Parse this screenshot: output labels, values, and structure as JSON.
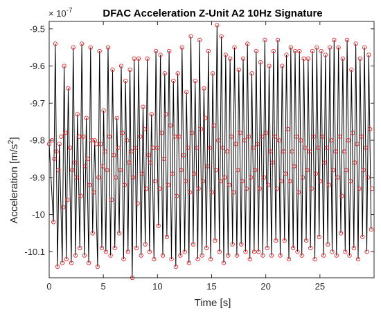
{
  "chart_data": {
    "type": "line",
    "title": "DFAC Acceleration Z-Unit A2 10Hz Signature",
    "xlabel": "Time [s]",
    "ylabel": "Acceleration [m/s",
    "ylabel_sup": "2",
    "ylabel_end": "]",
    "exponent_base": "× 10",
    "exponent_power": "-7",
    "xlim": [
      0,
      30
    ],
    "ylim": [
      -10.17,
      -9.48
    ],
    "x_ticks": [
      0,
      5,
      10,
      15,
      20,
      25
    ],
    "x_tick_labels": [
      "0",
      "5",
      "10",
      "15",
      "20",
      "25"
    ],
    "y_ticks": [
      -9.5,
      -9.6,
      -9.7,
      -9.8,
      -9.9,
      -10.0,
      -10.1
    ],
    "y_tick_labels": [
      "-9.5",
      "-9.6",
      "-9.7",
      "-9.8",
      "-9.9",
      "-10",
      "-10.1"
    ],
    "grid": false,
    "legend": false,
    "colors": {
      "line": "#000000",
      "marker": "#e8262c",
      "axes": "#262626"
    },
    "series": [
      {
        "style": "line with circle markers at peaks and troughs",
        "x": [
          0.0,
          0.39,
          0.56,
          0.77,
          0.94,
          1.21,
          1.38,
          1.58,
          1.76,
          2.04,
          2.22,
          2.44,
          2.61,
          2.83,
          3.01,
          3.25,
          3.43,
          3.65,
          3.82,
          4.01,
          4.2,
          4.47,
          4.65,
          4.86,
          5.03,
          5.23,
          5.44,
          5.67,
          5.85,
          6.06,
          6.25,
          6.47,
          6.65,
          6.87,
          7.05,
          7.28,
          7.46,
          7.67,
          7.85,
          8.06,
          8.26,
          8.49,
          8.67,
          8.87,
          9.06,
          9.27,
          9.45,
          9.68,
          9.86,
          10.09,
          10.27,
          10.49,
          10.67,
          10.87,
          11.07,
          11.29,
          11.47,
          11.69,
          11.87,
          12.11,
          12.27,
          12.51,
          12.68,
          12.91,
          13.08,
          13.3,
          13.48,
          13.72,
          13.88,
          14.11,
          14.29,
          14.52,
          14.7,
          14.92,
          15.1,
          15.31,
          15.5,
          15.72,
          15.9,
          16.12,
          16.3,
          16.52,
          16.7,
          16.93,
          17.11,
          17.33,
          17.51,
          17.73,
          17.91,
          18.13,
          18.31,
          18.53,
          18.71,
          18.93,
          19.11,
          19.33,
          19.51,
          19.73,
          19.91,
          20.13,
          20.31,
          20.53,
          20.71,
          20.93,
          21.11,
          21.33,
          21.51,
          21.73,
          21.91,
          22.13,
          22.31,
          22.53,
          22.71,
          22.93,
          23.11,
          23.33,
          23.51,
          23.73,
          23.91,
          24.13,
          24.31,
          24.53,
          24.71,
          24.93,
          25.11,
          25.33,
          25.51,
          25.73,
          25.91,
          26.13,
          26.31,
          26.53,
          26.71,
          26.93,
          27.11,
          27.33,
          27.51,
          27.73,
          27.91,
          28.13,
          28.31,
          28.53,
          28.71,
          28.93,
          29.11,
          29.33,
          29.51,
          29.73
        ],
        "y": [
          -9.81,
          -10.02,
          -9.54,
          -10.14,
          -9.81,
          -10.13,
          -9.6,
          -10.12,
          -9.66,
          -10.13,
          -9.55,
          -10.11,
          -9.73,
          -10.09,
          -9.54,
          -10.11,
          -9.74,
          -10.13,
          -9.55,
          -10.05,
          -9.8,
          -10.14,
          -9.56,
          -10.09,
          -9.72,
          -10.1,
          -9.55,
          -10.11,
          -9.61,
          -10.09,
          -9.74,
          -10.05,
          -9.6,
          -10.12,
          -9.64,
          -10.1,
          -9.61,
          -10.17,
          -9.58,
          -10.09,
          -9.58,
          -10.11,
          -9.71,
          -10.08,
          -9.58,
          -10.1,
          -9.73,
          -10.12,
          -9.56,
          -10.03,
          -9.57,
          -10.11,
          -9.62,
          -10.06,
          -9.56,
          -10.12,
          -9.64,
          -10.14,
          -9.62,
          -10.11,
          -9.55,
          -10.1,
          -9.67,
          -10.13,
          -9.52,
          -10.08,
          -9.64,
          -10.12,
          -9.53,
          -10.11,
          -9.66,
          -10.09,
          -9.56,
          -10.12,
          -9.62,
          -10.07,
          -9.49,
          -10.1,
          -9.52,
          -10.13,
          -9.57,
          -10.11,
          -9.58,
          -10.08,
          -9.55,
          -10.11,
          -9.61,
          -10.08,
          -9.58,
          -10.1,
          -9.54,
          -10.12,
          -9.62,
          -10.1,
          -9.56,
          -10.1,
          -9.59,
          -10.11,
          -9.53,
          -10.09,
          -9.6,
          -10.11,
          -9.56,
          -10.07,
          -9.53,
          -10.11,
          -9.6,
          -10.07,
          -9.57,
          -10.12,
          -9.55,
          -10.09,
          -9.56,
          -10.1,
          -9.56,
          -10.11,
          -9.58,
          -10.07,
          -9.58,
          -10.09,
          -9.56,
          -10.12,
          -9.55,
          -10.06,
          -9.56,
          -10.11,
          -9.57,
          -10.08,
          -9.55,
          -10.1,
          -9.53,
          -10.11,
          -9.55,
          -10.05,
          -9.58,
          -10.1,
          -9.53,
          -10.11,
          -9.61,
          -10.09,
          -9.54,
          -10.12,
          -9.58,
          -10.06,
          -9.55,
          -10.1,
          -9.57,
          -10.04
        ]
      },
      {
        "style": "circle markers only (secondary peak/trough pairs)",
        "x": [
          0.25,
          0.47,
          0.68,
          0.86,
          1.1,
          1.3,
          1.49,
          1.67,
          1.92,
          2.13,
          2.35,
          2.52,
          2.74,
          2.92,
          3.14,
          3.34,
          3.55,
          3.73,
          3.92,
          4.11,
          4.35,
          4.56,
          4.76,
          4.95,
          5.14,
          5.34,
          5.56,
          5.76,
          5.97,
          6.16,
          6.37,
          6.56,
          6.77,
          6.96,
          7.18,
          7.37,
          7.58,
          7.76,
          7.97,
          8.16,
          8.39,
          8.58,
          8.78,
          8.97,
          9.17,
          9.36,
          9.58,
          9.77,
          9.98,
          10.18,
          10.39,
          10.58,
          10.78,
          10.98,
          11.19,
          11.38,
          11.59,
          11.78,
          12.0,
          12.19,
          12.4,
          12.59,
          12.8,
          12.99,
          13.2,
          13.39,
          13.61,
          13.79,
          14.0,
          14.2,
          14.42,
          14.61,
          14.82,
          15.01,
          15.21,
          15.41,
          15.62,
          15.81,
          16.02,
          16.21,
          16.42,
          16.61,
          16.82,
          17.02,
          17.23,
          17.42,
          17.63,
          17.82,
          18.03,
          18.22,
          18.43,
          18.62,
          18.83,
          19.02,
          19.23,
          19.42,
          19.63,
          19.82,
          20.03,
          20.22,
          20.43,
          20.62,
          20.83,
          21.02,
          21.23,
          21.42,
          21.63,
          21.82,
          22.03,
          22.22,
          22.43,
          22.62,
          22.83,
          23.02,
          23.23,
          23.42,
          23.63,
          23.82,
          24.03,
          24.22,
          24.43,
          24.62,
          24.83,
          25.02,
          25.23,
          25.42,
          25.63,
          25.82,
          26.03,
          26.22,
          26.43,
          26.62,
          26.83,
          27.02,
          27.23,
          27.42,
          27.63,
          27.82,
          28.03,
          28.22,
          28.43,
          28.62,
          28.83,
          29.02,
          29.23,
          29.42,
          29.63,
          29.82
        ],
        "y": [
          -9.8,
          -9.85,
          -9.83,
          -9.88,
          -9.79,
          -9.98,
          -9.78,
          -9.96,
          -9.82,
          -9.88,
          -9.86,
          -9.9,
          -9.79,
          -9.95,
          -9.79,
          -9.87,
          -9.85,
          -9.92,
          -9.8,
          -9.94,
          -9.81,
          -9.9,
          -9.81,
          -9.87,
          -9.83,
          -9.88,
          -9.79,
          -9.96,
          -9.84,
          -9.9,
          -9.82,
          -9.88,
          -9.78,
          -9.92,
          -9.8,
          -9.86,
          -9.83,
          -9.9,
          -9.82,
          -9.97,
          -9.79,
          -9.89,
          -9.77,
          -9.93,
          -9.84,
          -9.86,
          -9.82,
          -9.91,
          -9.82,
          -9.93,
          -9.78,
          -9.85,
          -9.73,
          -9.92,
          -9.76,
          -9.89,
          -9.79,
          -9.95,
          -9.79,
          -9.88,
          -9.84,
          -9.91,
          -9.82,
          -9.94,
          -9.78,
          -9.89,
          -9.82,
          -9.93,
          -9.77,
          -9.91,
          -9.74,
          -9.87,
          -9.82,
          -9.94,
          -9.76,
          -9.88,
          -9.8,
          -9.91,
          -9.82,
          -9.9,
          -9.83,
          -9.92,
          -9.79,
          -9.94,
          -9.81,
          -9.88,
          -9.78,
          -9.91,
          -9.8,
          -9.93,
          -9.79,
          -9.9,
          -9.82,
          -9.88,
          -9.81,
          -9.93,
          -9.79,
          -9.9,
          -9.78,
          -9.92,
          -9.83,
          -9.86,
          -9.79,
          -9.93,
          -9.8,
          -9.91,
          -9.83,
          -9.89,
          -9.77,
          -9.91,
          -9.83,
          -9.87,
          -9.79,
          -9.94,
          -9.8,
          -9.9,
          -9.82,
          -9.88,
          -9.83,
          -9.93,
          -9.79,
          -9.89,
          -9.82,
          -9.91,
          -9.79,
          -9.86,
          -9.82,
          -9.92,
          -9.8,
          -9.88,
          -9.83,
          -9.9,
          -9.79,
          -9.95,
          -9.83,
          -9.88,
          -9.8,
          -9.91,
          -9.78,
          -9.86,
          -9.81,
          -9.93,
          -9.79,
          -9.88,
          -9.82,
          -9.9,
          -9.77,
          -9.93
        ]
      }
    ]
  }
}
